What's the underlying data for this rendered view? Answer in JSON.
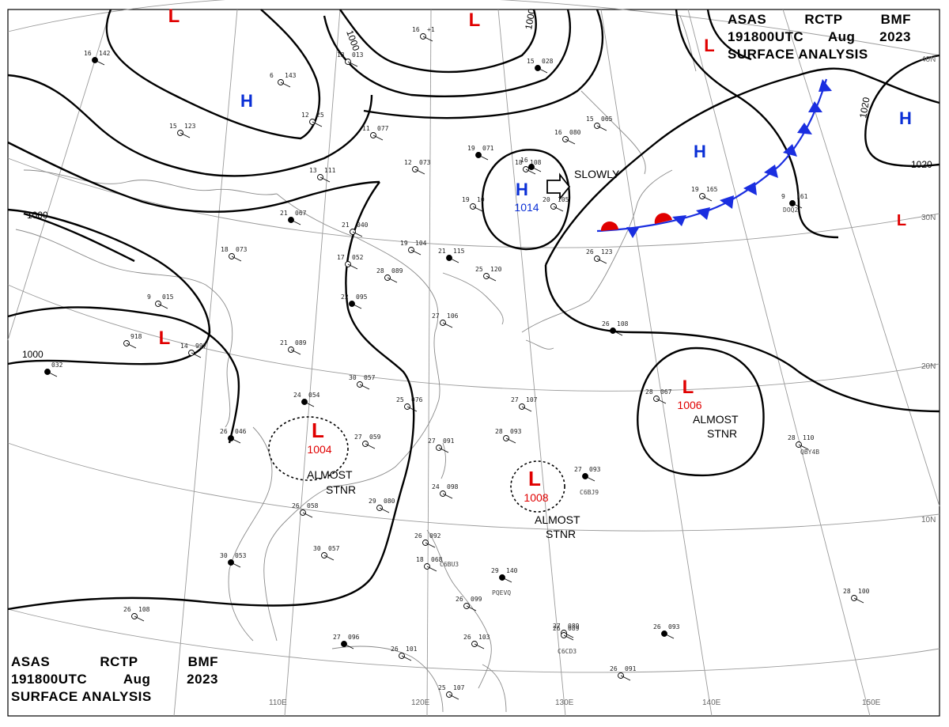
{
  "header": {
    "station": "ASAS",
    "center": "RCTP",
    "office": "BMF",
    "time": "191800UTC",
    "month": "Aug",
    "year": "2023",
    "product": "SURFACE ANALYSIS"
  },
  "colors": {
    "high": "#0a2fd6",
    "low": "#e00000",
    "isobar": "#000000",
    "coast": "#8a8a8a",
    "grid": "#9a9a9a",
    "cold_front": "#1a2ee0",
    "warm_front": "#e00000"
  },
  "latitude_labels": [
    "40N",
    "30N",
    "20N",
    "10N"
  ],
  "longitude_labels": [
    "110E",
    "120E",
    "130E",
    "140E",
    "150E"
  ],
  "isobar_labels": [
    "1000",
    "1000",
    "1000",
    "1000",
    "1020",
    "1020"
  ],
  "pressure_systems": [
    {
      "type": "L",
      "value": ""
    },
    {
      "type": "L",
      "value": ""
    },
    {
      "type": "L",
      "value": ""
    },
    {
      "type": "H",
      "value": ""
    },
    {
      "type": "H",
      "value": "1014"
    },
    {
      "type": "H",
      "value": ""
    },
    {
      "type": "H",
      "value": ""
    },
    {
      "type": "L",
      "value": ""
    },
    {
      "type": "L",
      "value": ""
    },
    {
      "type": "L",
      "value": "1004"
    },
    {
      "type": "L",
      "value": "1008"
    },
    {
      "type": "L",
      "value": "1006"
    }
  ],
  "annotations": {
    "motion": "SLOWLY",
    "stnr_1": [
      "ALMOST",
      "STNR"
    ],
    "stnr_2": [
      "ALMOST",
      "STNR"
    ],
    "stnr_3": [
      "ALMOST",
      "STNR"
    ]
  },
  "stations": [
    {
      "t": "16",
      "p": "142"
    },
    {
      "t": "6",
      "p": "143"
    },
    {
      "t": "13",
      "p": "013"
    },
    {
      "t": "16",
      "p": "+1"
    },
    {
      "t": "15",
      "p": "028"
    },
    {
      "t": "12",
      "p": "25"
    },
    {
      "t": "15",
      "p": "123"
    },
    {
      "t": "11",
      "p": "077"
    },
    {
      "t": "19",
      "p": "071"
    },
    {
      "t": "13",
      "p": "111"
    },
    {
      "t": "12",
      "p": "073"
    },
    {
      "t": "16",
      "p": "080"
    },
    {
      "t": "21",
      "p": "067"
    },
    {
      "t": "18",
      "p": "073"
    },
    {
      "t": "21",
      "p": "040"
    },
    {
      "t": "19",
      "p": "104"
    },
    {
      "t": "21",
      "p": "115"
    },
    {
      "t": "17",
      "p": "052"
    },
    {
      "t": "28",
      "p": "089"
    },
    {
      "t": "25",
      "p": "120"
    },
    {
      "t": "22",
      "p": "095"
    },
    {
      "t": "9",
      "p": "015"
    },
    {
      "t": "14",
      "p": "997"
    },
    {
      "t": "",
      "p": "918"
    },
    {
      "t": "",
      "p": "032"
    },
    {
      "t": "21",
      "p": "089"
    },
    {
      "t": "27",
      "p": "106"
    },
    {
      "t": "30",
      "p": "057"
    },
    {
      "t": "24",
      "p": "054"
    },
    {
      "t": "25",
      "p": "076"
    },
    {
      "t": "27",
      "p": "107"
    },
    {
      "t": "28",
      "p": "067"
    },
    {
      "t": "26",
      "p": "046"
    },
    {
      "t": "27",
      "p": "059"
    },
    {
      "t": "27",
      "p": "091"
    },
    {
      "t": "28",
      "p": "093"
    },
    {
      "t": "27",
      "p": "093"
    },
    {
      "t": "24",
      "p": "098"
    },
    {
      "t": "29",
      "p": "080"
    },
    {
      "t": "26",
      "p": "058"
    },
    {
      "t": "30",
      "p": "053"
    },
    {
      "t": "30",
      "p": "057"
    },
    {
      "t": "26",
      "p": "092"
    },
    {
      "t": "18",
      "p": "068"
    },
    {
      "t": "29",
      "p": "140"
    },
    {
      "t": "27",
      "p": "089"
    },
    {
      "t": "28",
      "p": "100"
    },
    {
      "t": "26",
      "p": "108"
    },
    {
      "t": "27",
      "p": "096"
    },
    {
      "t": "26",
      "p": "101"
    },
    {
      "t": "26",
      "p": "103"
    },
    {
      "t": "26",
      "p": "089"
    },
    {
      "t": "26",
      "p": "093"
    },
    {
      "t": "26",
      "p": "091"
    },
    {
      "t": "25",
      "p": "107"
    },
    {
      "t": "26",
      "p": "099"
    },
    {
      "t": "9",
      "p": "161"
    },
    {
      "t": "19",
      "p": "165"
    },
    {
      "t": "28",
      "p": "110"
    },
    {
      "t": "26",
      "p": "123"
    },
    {
      "t": "26",
      "p": "108"
    },
    {
      "t": "20",
      "p": "105"
    },
    {
      "t": "19",
      "p": "10"
    },
    {
      "t": "18",
      "p": "108"
    },
    {
      "t": "16",
      "p": ""
    },
    {
      "t": "15",
      "p": "065"
    }
  ],
  "ship_ids": [
    "QBY4B",
    "C6BJ9",
    "C6BU3",
    "PQEVQ",
    "C6CD3",
    "DOQ2"
  ]
}
